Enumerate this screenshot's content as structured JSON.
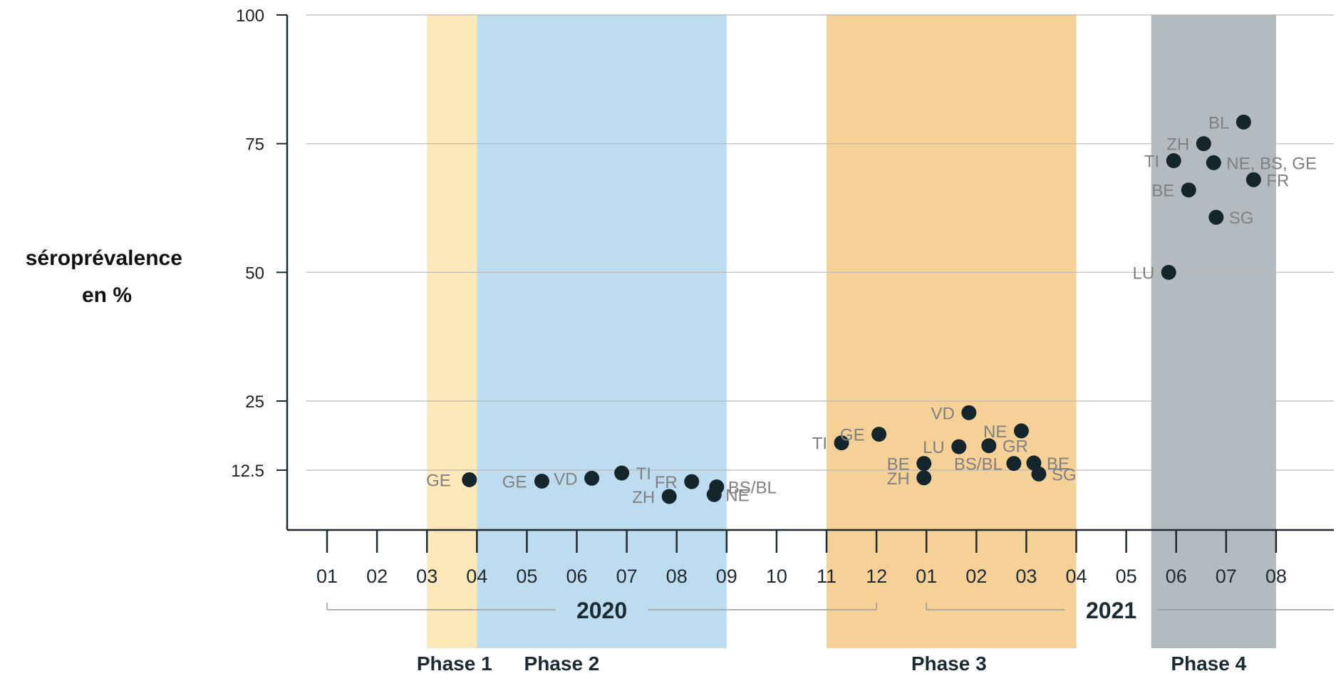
{
  "chart_data": {
    "type": "scatter",
    "ylabel": [
      "séroprévalence",
      "en %"
    ],
    "yticks": [
      {
        "value": 12.5,
        "label": "12.5"
      },
      {
        "value": 25,
        "label": "25"
      },
      {
        "value": 50,
        "label": "50"
      },
      {
        "value": 75,
        "label": "75"
      },
      {
        "value": 100,
        "label": "100"
      }
    ],
    "y_scale_note": "piecewise: 0-25 and 25-100 segments",
    "xticks": [
      "01",
      "02",
      "03",
      "04",
      "05",
      "06",
      "07",
      "08",
      "09",
      "10",
      "11",
      "12",
      "01",
      "02",
      "03",
      "04",
      "05",
      "06",
      "07",
      "08"
    ],
    "x_unit": "months since Jan 2020 (01/2020 = 0)",
    "years": [
      {
        "label": "2020",
        "from": 0,
        "to": 11
      },
      {
        "label": "2021",
        "from": 12,
        "to": 20
      }
    ],
    "phases": [
      {
        "label": "Phase 1",
        "from": 2,
        "to": 3,
        "color": "#fde8b9"
      },
      {
        "label": "Phase 2",
        "from": 3,
        "to": 8,
        "color": "#bedcf0"
      },
      {
        "label": "Phase 3",
        "from": 10,
        "to": 15,
        "color": "#f6d197"
      },
      {
        "label": "Phase 4",
        "from": 16.5,
        "to": 19,
        "color": "#b3bbc0"
      }
    ],
    "grid": "horizontal",
    "points": [
      {
        "x": 2.85,
        "y": 10.5,
        "label": "GE"
      },
      {
        "x": 4.3,
        "y": 10.2,
        "label": "GE"
      },
      {
        "x": 5.3,
        "y": 10.8,
        "label": "VD"
      },
      {
        "x": 5.9,
        "y": 11.9,
        "label": "TI"
      },
      {
        "x": 7.3,
        "y": 10.1,
        "label": "FR"
      },
      {
        "x": 6.85,
        "y": 7.0,
        "label": "ZH"
      },
      {
        "x": 7.8,
        "y": 9.0,
        "label": "BS/BL"
      },
      {
        "x": 7.75,
        "y": 7.4,
        "label": "NE"
      },
      {
        "x": 10.3,
        "y": 18.2,
        "label": "TI"
      },
      {
        "x": 11.05,
        "y": 20.0,
        "label": "GE"
      },
      {
        "x": 11.95,
        "y": 13.9,
        "label": "BE"
      },
      {
        "x": 11.95,
        "y": 10.9,
        "label": "ZH"
      },
      {
        "x": 12.65,
        "y": 17.4,
        "label": "LU"
      },
      {
        "x": 12.85,
        "y": 24.5,
        "label": "VD"
      },
      {
        "x": 13.25,
        "y": 17.6,
        "label": "GR"
      },
      {
        "x": 13.75,
        "y": 13.9,
        "label": "BS/BL"
      },
      {
        "x": 13.9,
        "y": 20.7,
        "label": "NE"
      },
      {
        "x": 14.15,
        "y": 14.0,
        "label": "BE"
      },
      {
        "x": 14.25,
        "y": 11.7,
        "label": "SG"
      },
      {
        "x": 16.85,
        "y": 50.0,
        "label": "LU"
      },
      {
        "x": 16.95,
        "y": 71.7,
        "label": "TI"
      },
      {
        "x": 17.25,
        "y": 66.0,
        "label": "BE"
      },
      {
        "x": 17.55,
        "y": 75.0,
        "label": "ZH"
      },
      {
        "x": 17.75,
        "y": 71.3,
        "label": "NE, BS, GE"
      },
      {
        "x": 17.8,
        "y": 60.7,
        "label": "SG"
      },
      {
        "x": 18.35,
        "y": 79.2,
        "label": "BL"
      },
      {
        "x": 18.55,
        "y": 68.0,
        "label": "FR"
      }
    ]
  },
  "colors": {
    "dot": "#14262c",
    "grid": "#b9b9b9",
    "axis": "#1f2a30",
    "bracket": "#9a9a9a"
  }
}
